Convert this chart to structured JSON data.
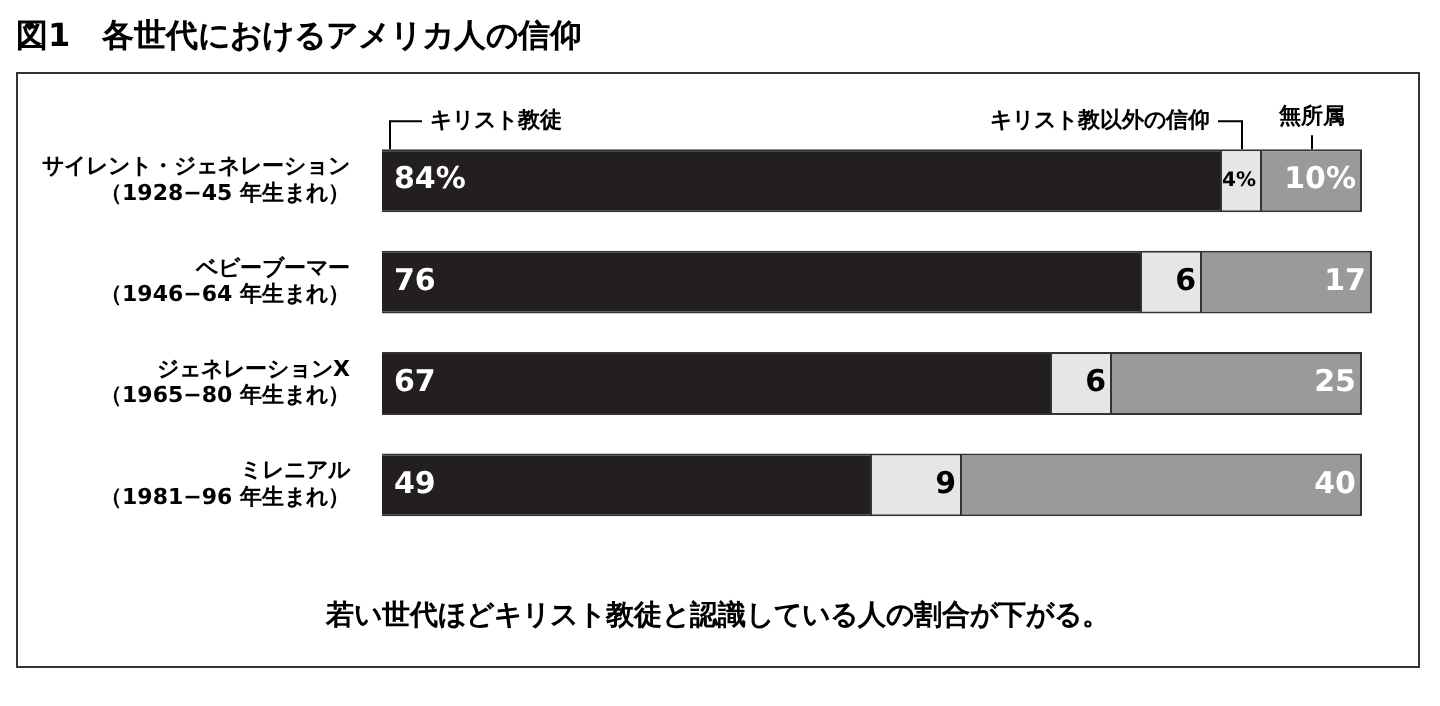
{
  "chart_data": {
    "type": "bar",
    "orientation": "horizontal",
    "stacked": true,
    "title": "図1　各世代におけるアメリカ人の信仰",
    "categories": [
      "サイレント・ジェネレーション（1928−45 年生まれ）",
      "ベビーブーマー（1946−64 年生まれ）",
      "ジェネレーションX（1965−80 年生まれ）",
      "ミレニアル（1981−96 年生まれ）"
    ],
    "series": [
      {
        "name": "キリスト教徒",
        "color": "#231f20",
        "values": [
          84,
          76,
          67,
          49
        ],
        "value_labels": [
          "84%",
          "76",
          "67",
          "49"
        ]
      },
      {
        "name": "キリスト教以外の信仰",
        "color": "#e6e6e6",
        "values": [
          4,
          6,
          6,
          9
        ],
        "value_labels": [
          "4%",
          "6",
          "6",
          "9"
        ]
      },
      {
        "name": "無所属",
        "color": "#9a9a9a",
        "values": [
          10,
          17,
          25,
          40
        ],
        "value_labels": [
          "10%",
          "17",
          "25",
          "40"
        ]
      }
    ],
    "tick_labels": "y",
    "annotations": [
      "若い世代ほどキリスト教徒と認識している人の割合が下がる。"
    ]
  }
}
